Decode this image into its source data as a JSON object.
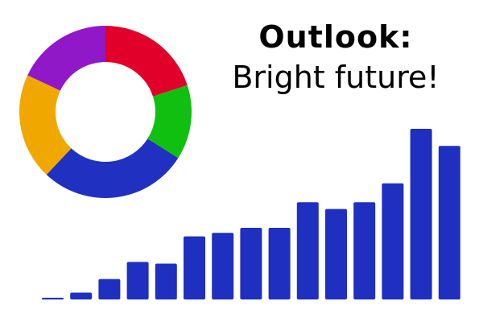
{
  "headline": {
    "title": "Outlook:",
    "subtitle": "Bright future!"
  },
  "chart_data": [
    {
      "type": "pie",
      "style": "donut",
      "values": [
        20,
        14,
        28,
        20,
        18
      ],
      "colors": [
        "#e0002a",
        "#10c010",
        "#2030c0",
        "#f0a800",
        "#9018c8"
      ]
    },
    {
      "type": "bar",
      "values": [
        1,
        4,
        12,
        22,
        21,
        37,
        39,
        42,
        42,
        57,
        53,
        57,
        68,
        100,
        90
      ],
      "ylim": [
        0,
        100
      ],
      "grid": false,
      "color": "#1f2fbf"
    }
  ]
}
